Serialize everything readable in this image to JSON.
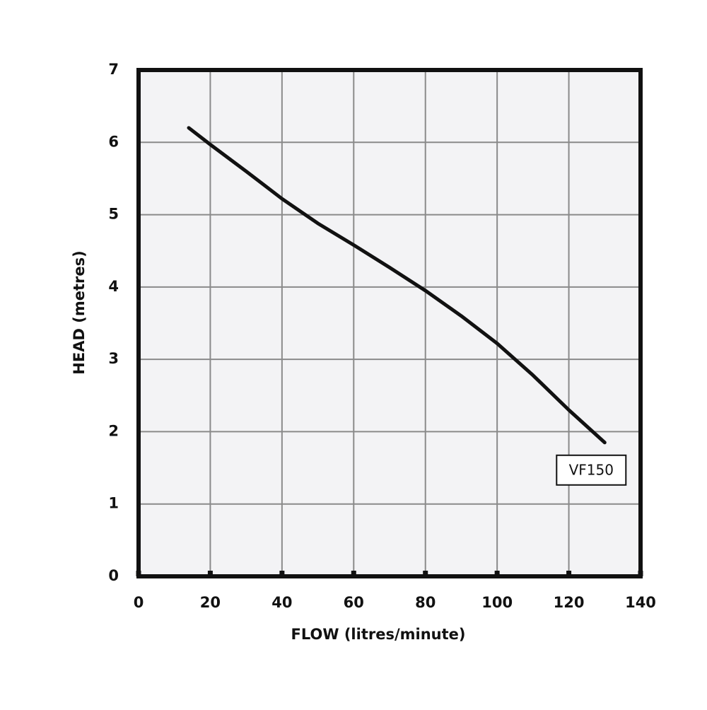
{
  "chart_data": {
    "type": "line",
    "x_label": "FLOW (litres/minute)",
    "y_label": "HEAD (metres)",
    "xlim": [
      0,
      140
    ],
    "ylim": [
      0,
      7
    ],
    "xticks": [
      0,
      20,
      40,
      60,
      80,
      100,
      120,
      140
    ],
    "yticks": [
      0,
      1,
      2,
      3,
      4,
      5,
      6,
      7
    ],
    "grid": true,
    "series": [
      {
        "name": "VF150",
        "color": "#111111",
        "x": [
          14,
          20,
          30,
          40,
          50,
          60,
          70,
          80,
          90,
          100,
          110,
          120,
          130
        ],
        "values": [
          6.2,
          5.97,
          5.6,
          5.22,
          4.88,
          4.58,
          4.27,
          3.95,
          3.6,
          3.22,
          2.78,
          2.3,
          1.85
        ]
      }
    ]
  }
}
